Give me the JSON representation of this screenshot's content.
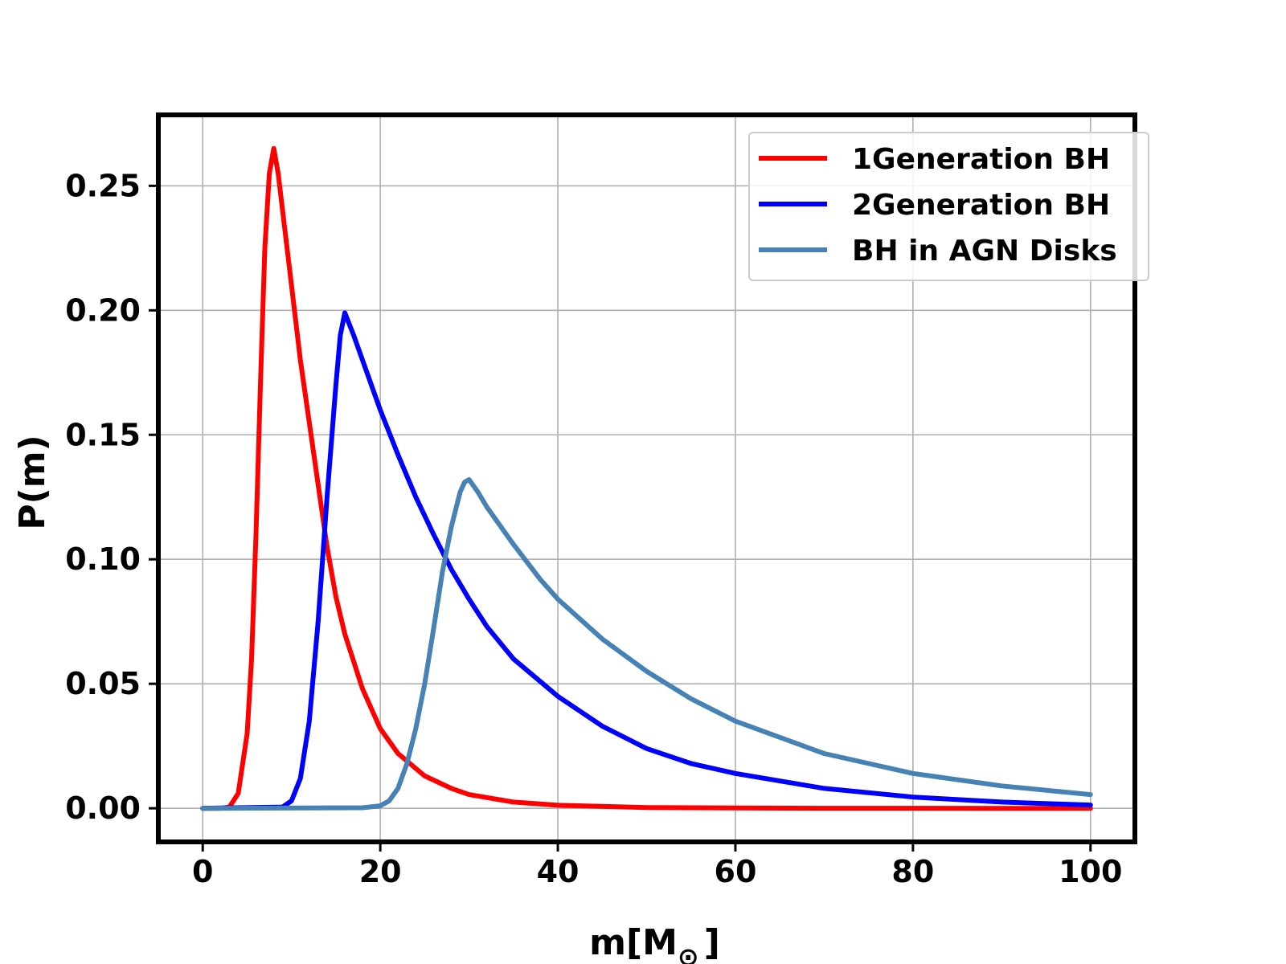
{
  "chart_data": {
    "type": "line",
    "title": "",
    "xlabel": "m[M⊙]",
    "xlabel_main": "m[M",
    "xlabel_sub": "⊙",
    "xlabel_close": "]",
    "ylabel": "P(m)",
    "xlim": [
      -5,
      105
    ],
    "ylim": [
      -0.0135,
      0.2785
    ],
    "x_ticks": [
      0,
      20,
      40,
      60,
      80,
      100
    ],
    "x_tick_labels": [
      "0",
      "20",
      "40",
      "60",
      "80",
      "100"
    ],
    "y_ticks": [
      0.0,
      0.05,
      0.1,
      0.15,
      0.2,
      0.25
    ],
    "y_tick_labels": [
      "0.00",
      "0.05",
      "0.10",
      "0.15",
      "0.20",
      "0.25"
    ],
    "grid": true,
    "legend_position": "top-right",
    "series": [
      {
        "name": "1Generation BH",
        "color": "#ff0000",
        "x": [
          0,
          2,
          3,
          4,
          5,
          5.5,
          6,
          6.5,
          7,
          7.5,
          8,
          8.5,
          9,
          10,
          11,
          12,
          13,
          14,
          15,
          16,
          18,
          20,
          22,
          25,
          28,
          30,
          35,
          40,
          50,
          60,
          70,
          80,
          90,
          100
        ],
        "y": [
          0,
          0,
          0.0005,
          0.006,
          0.03,
          0.06,
          0.11,
          0.17,
          0.225,
          0.255,
          0.265,
          0.255,
          0.24,
          0.21,
          0.18,
          0.155,
          0.13,
          0.105,
          0.085,
          0.07,
          0.048,
          0.032,
          0.022,
          0.013,
          0.008,
          0.0055,
          0.0025,
          0.0012,
          0.0003,
          0.0001,
          3e-05,
          1e-05,
          0,
          0
        ]
      },
      {
        "name": "2Generation BH",
        "color": "#0000ff",
        "x": [
          0,
          9,
          10,
          11,
          12,
          13,
          14,
          15,
          15.5,
          16,
          17,
          18,
          20,
          22,
          24,
          26,
          28,
          30,
          32,
          35,
          40,
          45,
          50,
          55,
          60,
          70,
          80,
          90,
          100
        ],
        "y": [
          0,
          0.0005,
          0.003,
          0.012,
          0.035,
          0.075,
          0.125,
          0.17,
          0.19,
          0.199,
          0.19,
          0.18,
          0.16,
          0.142,
          0.125,
          0.11,
          0.096,
          0.084,
          0.073,
          0.06,
          0.045,
          0.033,
          0.024,
          0.018,
          0.014,
          0.008,
          0.0045,
          0.0025,
          0.0013
        ]
      },
      {
        "name": "BH in AGN Disks",
        "color": "#4682b4",
        "x": [
          0,
          18,
          20,
          21,
          22,
          23,
          24,
          25,
          26,
          27,
          28,
          29,
          29.5,
          30,
          31,
          32,
          35,
          38,
          40,
          45,
          50,
          55,
          60,
          70,
          80,
          90,
          100
        ],
        "y": [
          0,
          0.0002,
          0.001,
          0.003,
          0.008,
          0.018,
          0.032,
          0.05,
          0.072,
          0.095,
          0.113,
          0.127,
          0.131,
          0.132,
          0.127,
          0.121,
          0.106,
          0.092,
          0.084,
          0.068,
          0.055,
          0.044,
          0.035,
          0.022,
          0.014,
          0.009,
          0.0055
        ]
      }
    ]
  }
}
